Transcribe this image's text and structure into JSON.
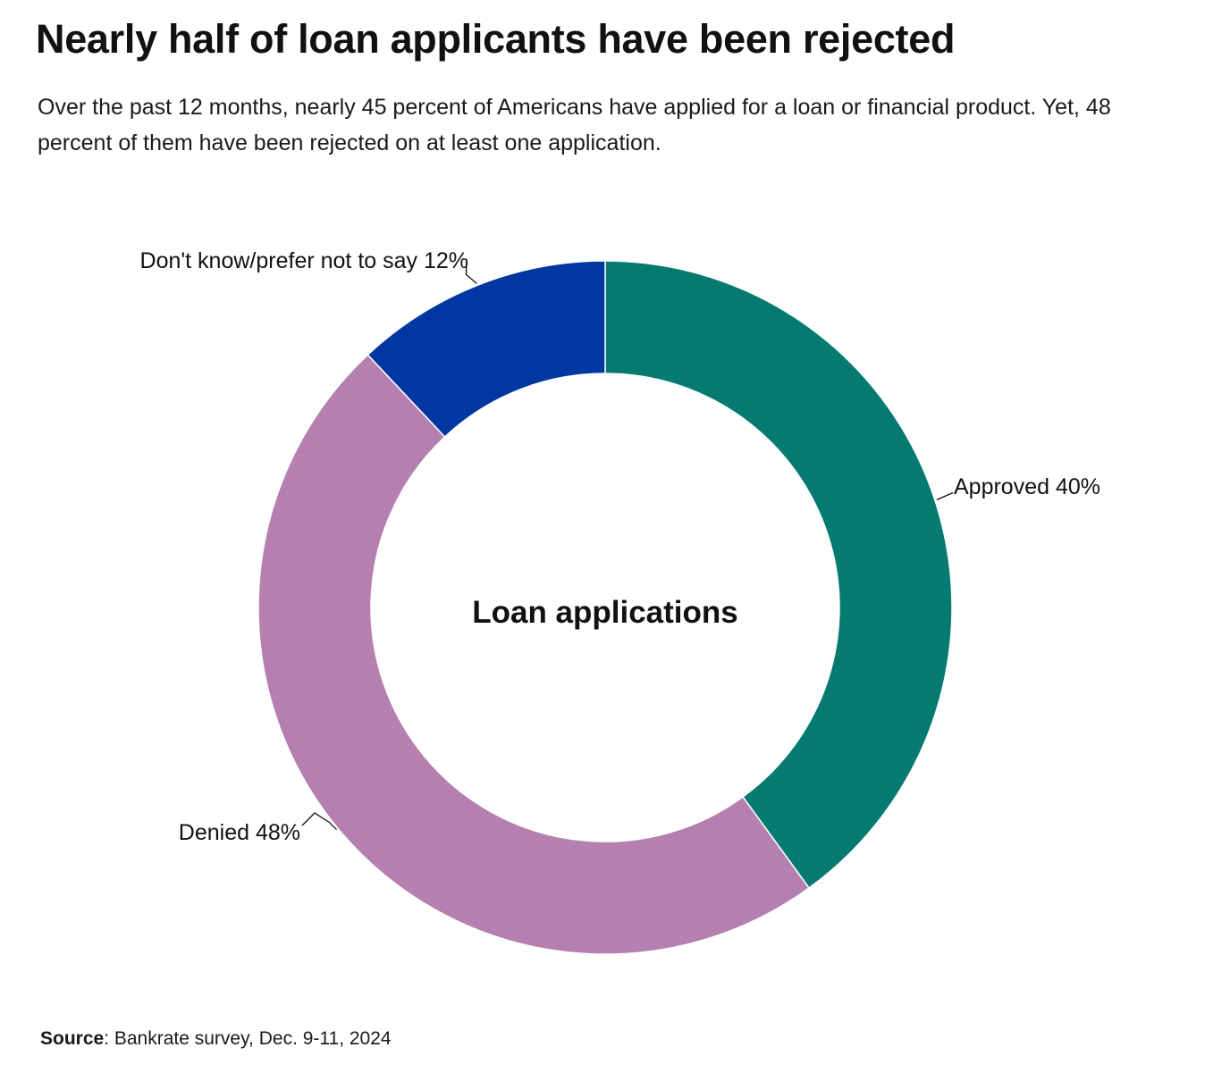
{
  "title": "Nearly half of loan applicants have been rejected",
  "subtitle": "Over the past 12 months, nearly 45 percent of Americans have applied for a loan or financial product. Yet, 48 percent of them have been rejected on at least one application.",
  "source": {
    "label": "Source",
    "text": ": Bankrate survey, Dec. 9-11, 2024"
  },
  "chart_data": {
    "type": "pie",
    "center_label": "Loan applications",
    "slices": [
      {
        "label": "Approved",
        "value": 40,
        "display": "Approved 40%",
        "color": "#047a70"
      },
      {
        "label": "Denied",
        "value": 48,
        "display": "Denied 48%",
        "color": "#b57fb0"
      },
      {
        "label": "Don't know/prefer not to say",
        "value": 12,
        "display": "Don't know/prefer not to say 12%",
        "color": "#0037a0"
      }
    ]
  }
}
